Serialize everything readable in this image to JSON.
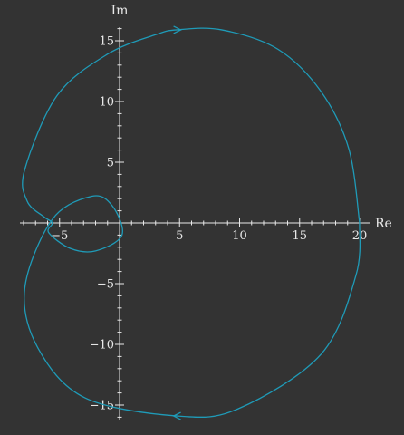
{
  "colors": {
    "background": "#333333",
    "axes": "#e8e8e8",
    "curve": "#1f9bb8"
  },
  "chart_data": {
    "type": "line",
    "title": "",
    "xlabel": "Re",
    "ylabel": "Im",
    "xlim": [
      -8.5,
      20.5
    ],
    "ylim": [
      -16.5,
      16.5
    ],
    "grid": false,
    "x_ticks": [
      -5,
      5,
      10,
      15,
      20
    ],
    "x_tick_labels": [
      "−5",
      "5",
      "10",
      "15",
      "20"
    ],
    "y_ticks": [
      -15,
      -10,
      -5,
      5,
      10,
      15
    ],
    "y_tick_labels": [
      "−15",
      "−10",
      "−5",
      "5",
      "10",
      "15"
    ],
    "series": [
      {
        "x": [
          20,
          19.1,
          16.8,
          13.2,
          8.5,
          4.8,
          3,
          -1,
          -5.2,
          -7.9,
          -7.7,
          -6.3,
          -5.6,
          -5.9,
          -4.1,
          -2,
          0.2,
          -0.6,
          -2.3,
          -5.6,
          -7.9,
          -6.8,
          -2.9,
          4.8,
          9.9,
          16.8,
          19.7,
          20
        ],
        "y": [
          0,
          6.1,
          10.8,
          14.3,
          15.9,
          15.9,
          15.5,
          13.9,
          10.5,
          4.4,
          1.8,
          0.5,
          0,
          -0.8,
          -2.1,
          -2.3,
          -1,
          1.4,
          2.2,
          0.3,
          -5.4,
          -10.3,
          -14.4,
          -15.9,
          -15.3,
          -10.8,
          -4.3,
          0
        ],
        "direction_arrows": [
          {
            "x": 4.8,
            "y": 15.9,
            "direction": "right"
          },
          {
            "x": 4.8,
            "y": -15.9,
            "direction": "left"
          }
        ]
      }
    ]
  }
}
